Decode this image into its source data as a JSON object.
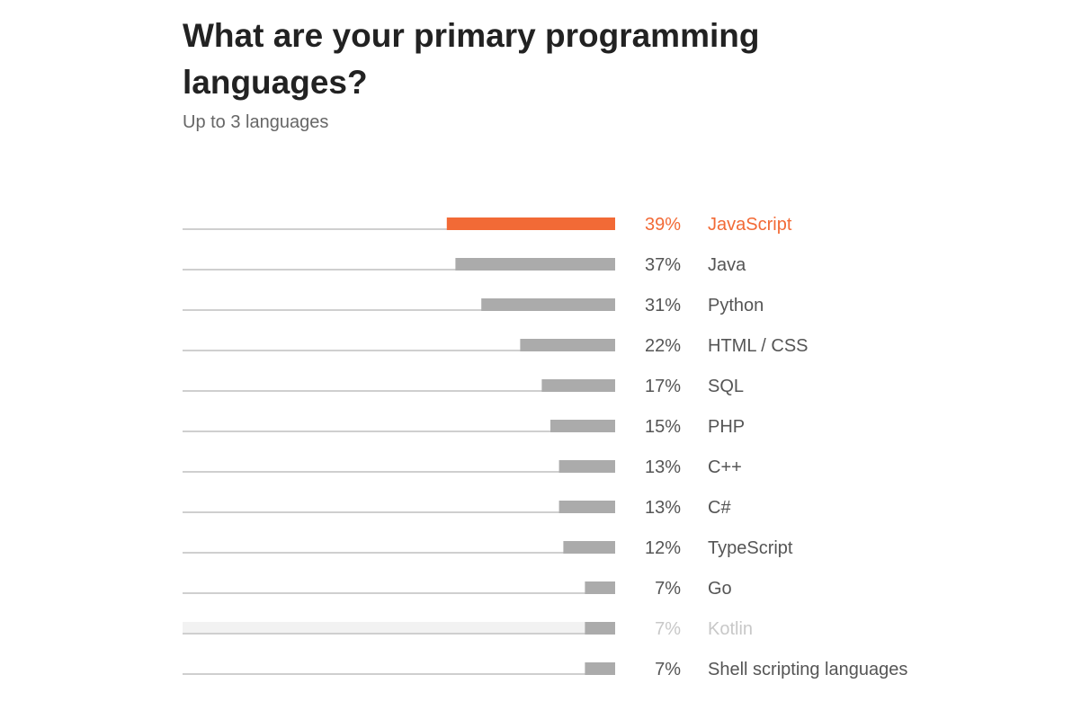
{
  "header": {
    "title_line1": "What are your primary programming",
    "title_line2": "languages?",
    "subtitle": "Up to 3 languages"
  },
  "colors": {
    "accent": "#F26A36",
    "bar": "#ABABAB",
    "baseline": "#CFCFCF",
    "label": "#555555",
    "highlight_bg": "#F2F2F2",
    "dimmed_text": "#C8C8C8"
  },
  "chart_data": {
    "type": "bar",
    "orientation": "horizontal",
    "unit": "%",
    "xlim": [
      0,
      100
    ],
    "grid": false,
    "categories": [
      "JavaScript",
      "Java",
      "Python",
      "HTML / CSS",
      "SQL",
      "PHP",
      "C++",
      "C#",
      "TypeScript",
      "Go",
      "Kotlin",
      "Shell scripting languages"
    ],
    "values": [
      39,
      37,
      31,
      22,
      17,
      15,
      13,
      13,
      12,
      7,
      7,
      7
    ],
    "value_labels": [
      "39%",
      "37%",
      "31%",
      "22%",
      "17%",
      "15%",
      "13%",
      "13%",
      "12%",
      "7%",
      "7%",
      "7%"
    ],
    "highlighted": "JavaScript",
    "hovered": "Kotlin"
  }
}
